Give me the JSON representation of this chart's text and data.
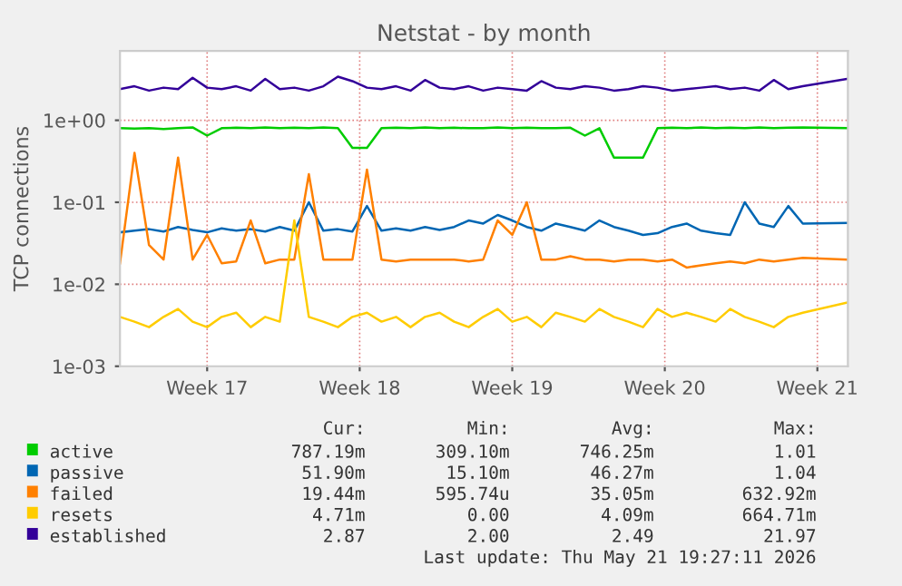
{
  "chart_data": {
    "type": "line",
    "title": "Netstat - by month",
    "ylabel": "TCP connections",
    "log": "y",
    "grid": true,
    "legend": "bottom",
    "xlim": [
      "2026-04-19T12:00",
      "2026-05-22T21:36"
    ],
    "xticks": [
      {
        "value": "2026-04-23T12:00",
        "label": "Week 17"
      },
      {
        "value": "2026-04-30T12:00",
        "label": "Week 18"
      },
      {
        "value": "2026-05-07T12:00",
        "label": "Week 19"
      },
      {
        "value": "2026-05-14T12:00",
        "label": "Week 20"
      },
      {
        "value": "2026-05-21T12:00",
        "label": "Week 21"
      }
    ],
    "ylim": [
      0.001,
      7
    ],
    "yticks": [
      {
        "value": 0.001,
        "label": "1e-03"
      },
      {
        "value": 0.01,
        "label": "1e-02"
      },
      {
        "value": 0.1,
        "label": "1e-01"
      },
      {
        "value": 1,
        "label": "1e+00"
      }
    ],
    "x": [
      "2026-04-19T12:00",
      "2026-04-20T04:00",
      "2026-04-20T20:00",
      "2026-04-21T12:00",
      "2026-04-22T04:00",
      "2026-04-22T20:00",
      "2026-04-23T12:00",
      "2026-04-24T04:00",
      "2026-04-24T20:00",
      "2026-04-25T12:00",
      "2026-04-26T04:00",
      "2026-04-26T20:00",
      "2026-04-27T12:00",
      "2026-04-28T04:00",
      "2026-04-28T20:00",
      "2026-04-29T12:00",
      "2026-04-30T04:00",
      "2026-04-30T20:00",
      "2026-05-01T12:00",
      "2026-05-02T04:00",
      "2026-05-02T20:00",
      "2026-05-03T12:00",
      "2026-05-04T04:00",
      "2026-05-04T20:00",
      "2026-05-05T12:00",
      "2026-05-06T04:00",
      "2026-05-06T20:00",
      "2026-05-07T12:00",
      "2026-05-08T04:00",
      "2026-05-08T20:00",
      "2026-05-09T12:00",
      "2026-05-10T04:00",
      "2026-05-10T20:00",
      "2026-05-11T12:00",
      "2026-05-12T04:00",
      "2026-05-12T20:00",
      "2026-05-13T12:00",
      "2026-05-14T04:00",
      "2026-05-14T20:00",
      "2026-05-15T12:00",
      "2026-05-16T04:00",
      "2026-05-16T20:00",
      "2026-05-17T12:00",
      "2026-05-18T04:00",
      "2026-05-18T20:00",
      "2026-05-19T12:00",
      "2026-05-20T04:00",
      "2026-05-20T20:00",
      "2026-05-22T21:00"
    ],
    "series": [
      {
        "name": "active",
        "color": "#00cc00",
        "values": [
          0.8,
          0.79,
          0.8,
          0.78,
          0.8,
          0.82,
          0.65,
          0.8,
          0.81,
          0.8,
          0.82,
          0.8,
          0.81,
          0.8,
          0.82,
          0.8,
          0.46,
          0.46,
          0.8,
          0.81,
          0.8,
          0.82,
          0.8,
          0.81,
          0.8,
          0.8,
          0.82,
          0.8,
          0.81,
          0.8,
          0.8,
          0.81,
          0.65,
          0.8,
          0.35,
          0.35,
          0.35,
          0.8,
          0.81,
          0.8,
          0.82,
          0.8,
          0.81,
          0.8,
          0.82,
          0.8,
          0.81,
          0.82,
          0.8
        ]
      },
      {
        "name": "passive",
        "color": "#0066b3",
        "values": [
          0.043,
          0.045,
          0.047,
          0.044,
          0.05,
          0.046,
          0.043,
          0.048,
          0.045,
          0.047,
          0.044,
          0.05,
          0.045,
          0.1,
          0.045,
          0.047,
          0.044,
          0.09,
          0.045,
          0.048,
          0.045,
          0.05,
          0.046,
          0.05,
          0.06,
          0.055,
          0.07,
          0.06,
          0.05,
          0.045,
          0.055,
          0.05,
          0.045,
          0.06,
          0.05,
          0.045,
          0.04,
          0.042,
          0.05,
          0.055,
          0.045,
          0.042,
          0.04,
          0.1,
          0.055,
          0.05,
          0.09,
          0.055,
          0.056
        ]
      },
      {
        "name": "failed",
        "color": "#ff8000",
        "values": [
          0.018,
          0.4,
          0.03,
          0.02,
          0.35,
          0.02,
          0.04,
          0.018,
          0.019,
          0.06,
          0.018,
          0.02,
          0.02,
          0.22,
          0.02,
          0.02,
          0.02,
          0.25,
          0.02,
          0.019,
          0.02,
          0.02,
          0.02,
          0.02,
          0.019,
          0.02,
          0.06,
          0.04,
          0.1,
          0.02,
          0.02,
          0.022,
          0.02,
          0.02,
          0.019,
          0.02,
          0.02,
          0.019,
          0.02,
          0.016,
          0.017,
          0.018,
          0.019,
          0.018,
          0.02,
          0.019,
          0.02,
          0.021,
          0.02
        ]
      },
      {
        "name": "resets",
        "color": "#ffcc00",
        "values": [
          0.004,
          0.0035,
          0.003,
          0.004,
          0.005,
          0.0035,
          0.003,
          0.004,
          0.0045,
          0.003,
          0.004,
          0.0035,
          0.06,
          0.004,
          0.0035,
          0.003,
          0.004,
          0.0045,
          0.0035,
          0.004,
          0.003,
          0.004,
          0.0045,
          0.0035,
          0.003,
          0.004,
          0.005,
          0.0035,
          0.004,
          0.003,
          0.0045,
          0.004,
          0.0035,
          0.005,
          0.004,
          0.0035,
          0.003,
          0.005,
          0.004,
          0.0045,
          0.004,
          0.0035,
          0.005,
          0.004,
          0.0035,
          0.003,
          0.004,
          0.0045,
          0.006
        ]
      },
      {
        "name": "established",
        "color": "#330099",
        "values": [
          2.4,
          2.6,
          2.3,
          2.5,
          2.4,
          3.3,
          2.5,
          2.4,
          2.6,
          2.3,
          3.2,
          2.4,
          2.5,
          2.3,
          2.6,
          3.4,
          3.0,
          2.5,
          2.4,
          2.6,
          2.3,
          3.1,
          2.5,
          2.4,
          2.6,
          2.3,
          2.5,
          2.4,
          2.3,
          3.0,
          2.5,
          2.4,
          2.6,
          2.5,
          2.3,
          2.4,
          2.6,
          2.5,
          2.3,
          2.4,
          2.5,
          2.6,
          2.4,
          2.5,
          2.3,
          3.1,
          2.4,
          2.6,
          3.2
        ]
      }
    ],
    "annotations": [
      "Cur:",
      "Min:",
      "Avg:",
      "Max:",
      "787.19m",
      "309.10m",
      "746.25m",
      "1.01",
      "51.90m",
      "15.10m",
      "46.27m",
      "1.04",
      "19.44m",
      "595.74u",
      "35.05m",
      "632.92m",
      "4.71m",
      "0.00",
      "4.09m",
      "664.71m",
      "2.87",
      "2.00",
      "2.49",
      "21.97",
      "Last update: Thu May 21 19:27:11 2026"
    ]
  }
}
